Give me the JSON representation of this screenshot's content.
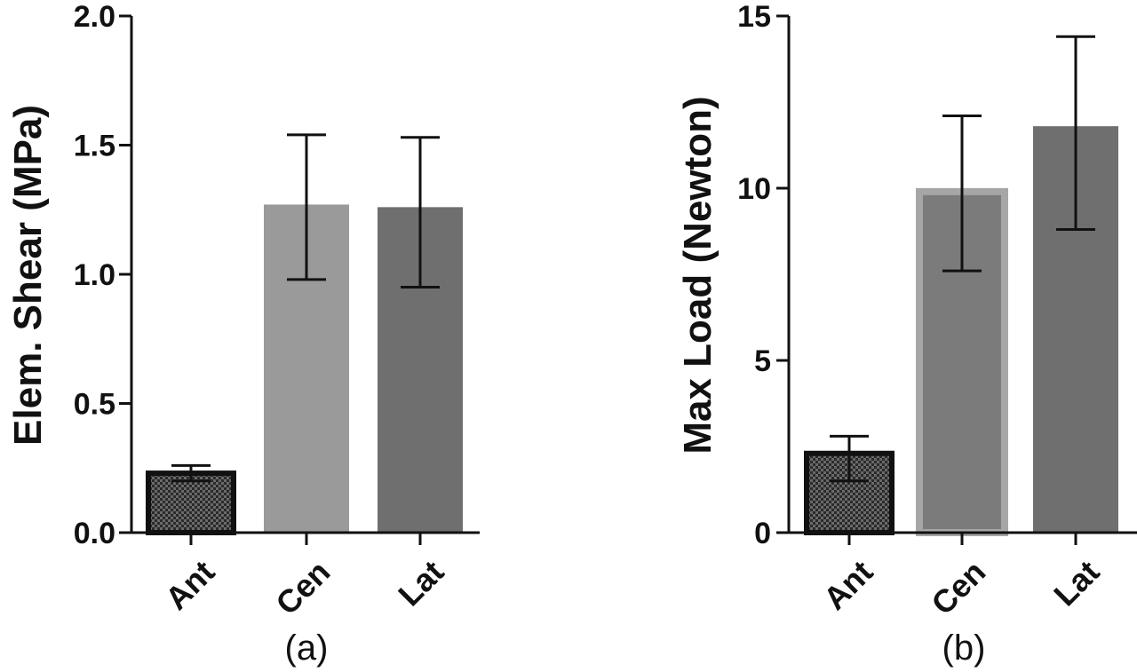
{
  "chart_data": [
    {
      "type": "bar",
      "panel_label": "(a)",
      "ylabel": "Elem. Shear (MPa)",
      "xlabel": "",
      "categories": [
        "Ant",
        "Cen",
        "Lat"
      ],
      "values": [
        0.23,
        1.27,
        1.26
      ],
      "error_low": [
        0.2,
        0.98,
        0.95
      ],
      "error_high": [
        0.26,
        1.54,
        1.53
      ],
      "ylim": [
        0.0,
        2.0
      ],
      "yticks": [
        "0.0",
        "0.5",
        "1.0",
        "1.5",
        "2.0"
      ],
      "ytick_values": [
        0.0,
        0.5,
        1.0,
        1.5,
        2.0
      ],
      "bar_colors": [
        "#1f1f1f",
        "#9a9a9a",
        "#6f6f6f"
      ],
      "bar_patterns": [
        "checker",
        "none",
        "none"
      ],
      "grid": false,
      "legend": "none"
    },
    {
      "type": "bar",
      "panel_label": "(b)",
      "ylabel": "Max Load (Newton)",
      "xlabel": "",
      "categories": [
        "Ant",
        "Cen",
        "Lat"
      ],
      "values": [
        2.3,
        9.9,
        11.8
      ],
      "error_low": [
        1.5,
        7.6,
        8.8
      ],
      "error_high": [
        2.8,
        12.1,
        14.4
      ],
      "ylim": [
        0,
        15
      ],
      "yticks": [
        "0",
        "5",
        "10",
        "15"
      ],
      "ytick_values": [
        0,
        5,
        10,
        15
      ],
      "bar_colors": [
        "#1f1f1f",
        "#7b7b7b",
        "#6f6f6f"
      ],
      "bar_patterns": [
        "checker",
        "outlined",
        "none"
      ],
      "grid": false,
      "legend": "none"
    }
  ]
}
